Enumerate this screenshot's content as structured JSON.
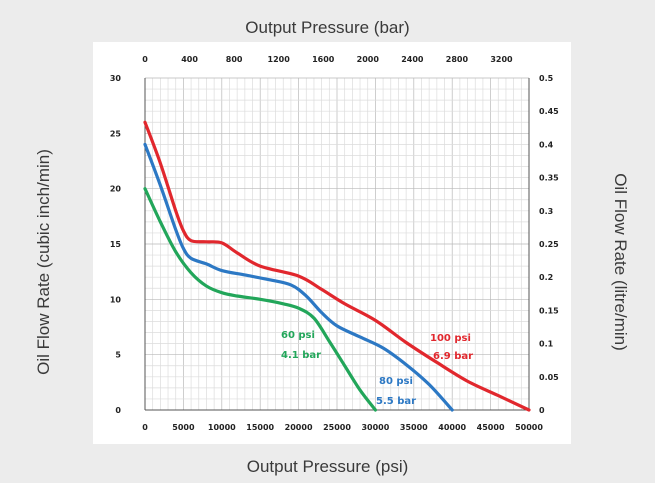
{
  "titles": {
    "top": "Output Pressure (bar)",
    "bottom": "Output Pressure (psi)",
    "left": "Oil Flow Rate (cubic inch/min)",
    "right": "Oil Flow Rate (litre/min)"
  },
  "chart_data": {
    "type": "line",
    "xlabel": "Output Pressure (psi)",
    "ylabel": "Oil Flow Rate (cubic inch/min)",
    "x2label": "Output Pressure (bar)",
    "y2label": "Oil Flow Rate (litre/min)",
    "xlim": [
      0,
      50000
    ],
    "ylim": [
      0,
      30
    ],
    "x_ticks": [
      "0",
      "5000",
      "10000",
      "15000",
      "20000",
      "25000",
      "30000",
      "35000",
      "40000",
      "45000",
      "50000"
    ],
    "y_ticks": [
      "0",
      "5",
      "10",
      "15",
      "20",
      "25",
      "30"
    ],
    "x2_ticks": [
      "0",
      "400",
      "800",
      "1200",
      "1600",
      "2000",
      "2400",
      "2800",
      "3200"
    ],
    "y2_ticks": [
      "0",
      "0.05",
      "0.1",
      "0.15",
      "0.2",
      "0.25",
      "0.3",
      "0.35",
      "0.4",
      "0.45",
      "0.5"
    ],
    "grid": true,
    "series": [
      {
        "name": "60 psi",
        "label_lines": [
          "60 psi",
          "4.1 bar"
        ],
        "color": "#22a65a",
        "x": [
          0,
          2000,
          4000,
          6000,
          8000,
          10000,
          12000,
          15000,
          18000,
          20000,
          22000,
          24000,
          26000,
          28000,
          30000
        ],
        "y": [
          20,
          17,
          14.3,
          12.4,
          11.2,
          10.6,
          10.3,
          10,
          9.6,
          9.2,
          8.3,
          6.2,
          4,
          1.8,
          0
        ]
      },
      {
        "name": "80 psi",
        "label_lines": [
          "80 psi",
          "5.5 bar"
        ],
        "color": "#2c78c4",
        "x": [
          0,
          2000,
          4000,
          5000,
          6000,
          8000,
          10000,
          13000,
          16000,
          19000,
          21000,
          23000,
          25000,
          28000,
          31000,
          34000,
          37000,
          40000
        ],
        "y": [
          24,
          20.3,
          16.3,
          14.6,
          13.7,
          13.2,
          12.6,
          12.2,
          11.8,
          11.3,
          10.3,
          8.8,
          7.6,
          6.6,
          5.6,
          4.1,
          2.3,
          0
        ]
      },
      {
        "name": "100 psi",
        "label_lines": [
          "100 psi",
          "6.9 bar"
        ],
        "color": "#e1272d",
        "x": [
          0,
          2000,
          4000,
          5000,
          6000,
          8000,
          10000,
          12000,
          15000,
          20000,
          23000,
          26000,
          30000,
          34000,
          38000,
          42000,
          46000,
          50000
        ],
        "y": [
          26,
          22.3,
          18,
          16.2,
          15.3,
          15.2,
          15.1,
          14.2,
          13,
          12.1,
          10.9,
          9.6,
          8.1,
          6.1,
          4.3,
          2.6,
          1.3,
          0
        ]
      }
    ]
  }
}
